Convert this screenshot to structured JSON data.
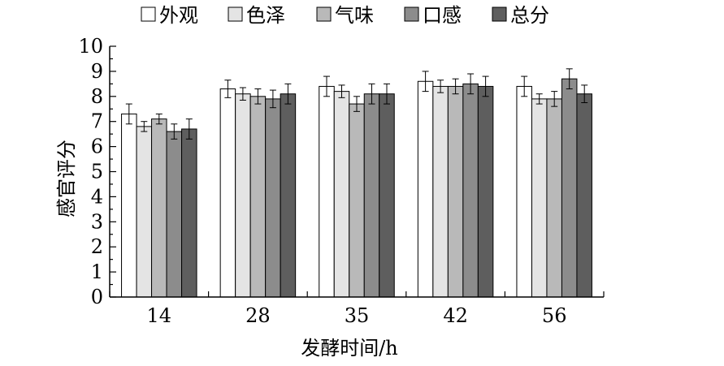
{
  "chart_data": {
    "type": "bar",
    "title": "",
    "xlabel": "发酵时间/h",
    "ylabel": "感官评分",
    "categories": [
      "14",
      "28",
      "35",
      "42",
      "56"
    ],
    "ylim": [
      0,
      10
    ],
    "yticks": [
      "0",
      "1",
      "2",
      "3",
      "4",
      "5",
      "6",
      "7",
      "8",
      "9",
      "10"
    ],
    "grid": false,
    "legend_position": "top",
    "series": [
      {
        "name": "外观",
        "color": "#ffffff",
        "values": [
          7.3,
          8.3,
          8.4,
          8.6,
          8.4
        ],
        "errors": [
          0.4,
          0.35,
          0.4,
          0.4,
          0.4
        ]
      },
      {
        "name": "色泽",
        "color": "#e4e4e4",
        "values": [
          6.8,
          8.1,
          8.2,
          8.4,
          7.9
        ],
        "errors": [
          0.2,
          0.25,
          0.25,
          0.25,
          0.2
        ]
      },
      {
        "name": "气味",
        "color": "#b9b9b9",
        "values": [
          7.1,
          8.0,
          7.7,
          8.4,
          7.9
        ],
        "errors": [
          0.2,
          0.3,
          0.3,
          0.3,
          0.3
        ]
      },
      {
        "name": "口感",
        "color": "#8c8c8c",
        "values": [
          6.6,
          7.9,
          8.1,
          8.5,
          8.7
        ],
        "errors": [
          0.3,
          0.35,
          0.4,
          0.4,
          0.4
        ]
      },
      {
        "name": "总分",
        "color": "#5e5e5e",
        "values": [
          6.7,
          8.1,
          8.1,
          8.4,
          8.1
        ],
        "errors": [
          0.4,
          0.4,
          0.4,
          0.4,
          0.35
        ]
      }
    ]
  }
}
